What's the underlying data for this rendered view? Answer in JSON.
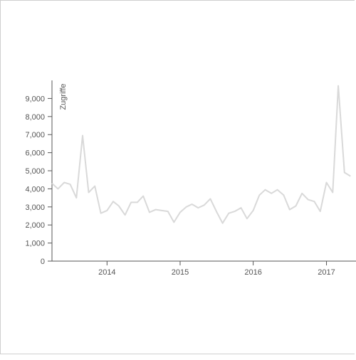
{
  "chart_data": {
    "type": "line",
    "title": "",
    "xlabel": "",
    "ylabel": "Zugriffe",
    "ylim": [
      0,
      10000
    ],
    "y_ticks": [
      0,
      1000,
      2000,
      3000,
      4000,
      5000,
      6000,
      7000,
      8000,
      9000
    ],
    "y_tick_labels": [
      "0",
      "1,000",
      "2,000",
      "3,000",
      "4,000",
      "5,000",
      "6,000",
      "7,000",
      "8,000",
      "9,000"
    ],
    "x_ticks": [
      "2014-01-01",
      "2015-01-01",
      "2016-01-01",
      "2017-01-01"
    ],
    "x_tick_labels": [
      "2014",
      "2015",
      "2016",
      "2017"
    ],
    "xlim": [
      "2013-04-01",
      "2017-06-01"
    ],
    "grid": false,
    "line_color": "#d9d9d9",
    "axis_color": "#555555",
    "series": [
      {
        "x": [
          "2013-04",
          "2013-05",
          "2013-06",
          "2013-07",
          "2013-08",
          "2013-09",
          "2013-10",
          "2013-11",
          "2013-12",
          "2014-01",
          "2014-02",
          "2014-03",
          "2014-04",
          "2014-05",
          "2014-06",
          "2014-07",
          "2014-08",
          "2014-09",
          "2014-10",
          "2014-11",
          "2014-12",
          "2015-01",
          "2015-02",
          "2015-03",
          "2015-04",
          "2015-05",
          "2015-06",
          "2015-07",
          "2015-08",
          "2015-09",
          "2015-10",
          "2015-11",
          "2015-12",
          "2016-01",
          "2016-02",
          "2016-03",
          "2016-04",
          "2016-05",
          "2016-06",
          "2016-07",
          "2016-08",
          "2016-09",
          "2016-10",
          "2016-11",
          "2016-12",
          "2017-01",
          "2017-02",
          "2017-03",
          "2017-04",
          "2017-05"
        ],
        "values": [
          4300,
          4000,
          4350,
          4250,
          3500,
          6950,
          3800,
          4150,
          2650,
          2800,
          3300,
          3050,
          2550,
          3250,
          3250,
          3600,
          2700,
          2850,
          2800,
          2750,
          2150,
          2700,
          3000,
          3150,
          2950,
          3100,
          3450,
          2750,
          2100,
          2650,
          2750,
          2950,
          2350,
          2800,
          3650,
          3950,
          3750,
          3950,
          3650,
          2850,
          3050,
          3750,
          3400,
          3300,
          2750,
          4350,
          3800,
          9700,
          4900,
          4700
        ]
      }
    ]
  }
}
